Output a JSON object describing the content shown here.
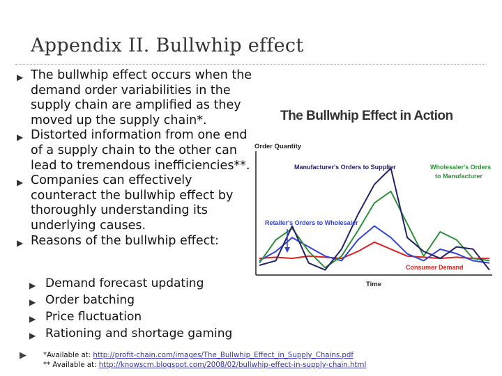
{
  "slide": {
    "title": "Appendix II. Bullwhip effect",
    "bullets": [
      "The bullwhip effect occurs when the demand order variabilities in the supply chain are amplified as they moved up the supply chain*.",
      "Distorted information from one end of a supply chain to the other can lead to tremendous inefficiencies**.",
      "Companies can effectively counteract the bullwhip effect by thoroughly understanding its underlying causes.",
      "Reasons of the bullwhip effect:"
    ],
    "sub_bullets": [
      "Demand forecast updating",
      "Order batching",
      "Price fluctuation",
      "Rationing and shortage gaming"
    ],
    "footnotes": {
      "note1_prefix": "*Available at: ",
      "note1_url": "http://profit-chain.com/images/The_Bullwhip_Effect_in_Supply_Chains.pdf",
      "note2_prefix": "** Available at: ",
      "note2_url": "http://knowscm.blogspot.com/2008/02/bullwhip-effect-in-supply-chain.html"
    }
  },
  "chart_data": {
    "type": "line",
    "title": "The Bullwhip Effect in Action",
    "ylabel": "Order Quantity",
    "xlabel": "Time",
    "x": [
      0,
      1,
      2,
      3,
      4,
      5,
      6,
      7,
      8,
      9,
      10,
      11,
      12,
      13,
      14
    ],
    "ylim": [
      0,
      100
    ],
    "series": [
      {
        "name": "Consumer Demand",
        "color": "#dd2222",
        "values": [
          12,
          13,
          12,
          14,
          13,
          12,
          18,
          26,
          20,
          14,
          13,
          12,
          13,
          12,
          12
        ]
      },
      {
        "name": "Retailer's Orders to Wholesaler",
        "color": "#3344cc",
        "values": [
          10,
          18,
          30,
          22,
          14,
          10,
          28,
          40,
          30,
          16,
          10,
          20,
          16,
          10,
          8
        ]
      },
      {
        "name": "Wholesaler's Orders to Manufacturer",
        "color": "#2f8f3a",
        "values": [
          8,
          28,
          38,
          18,
          4,
          14,
          36,
          60,
          70,
          42,
          14,
          35,
          28,
          12,
          10
        ]
      },
      {
        "name": "Manufacturer's Orders to Supplier",
        "color": "#222266",
        "values": [
          6,
          10,
          40,
          8,
          2,
          20,
          50,
          76,
          90,
          30,
          18,
          12,
          22,
          20,
          2
        ]
      }
    ]
  }
}
